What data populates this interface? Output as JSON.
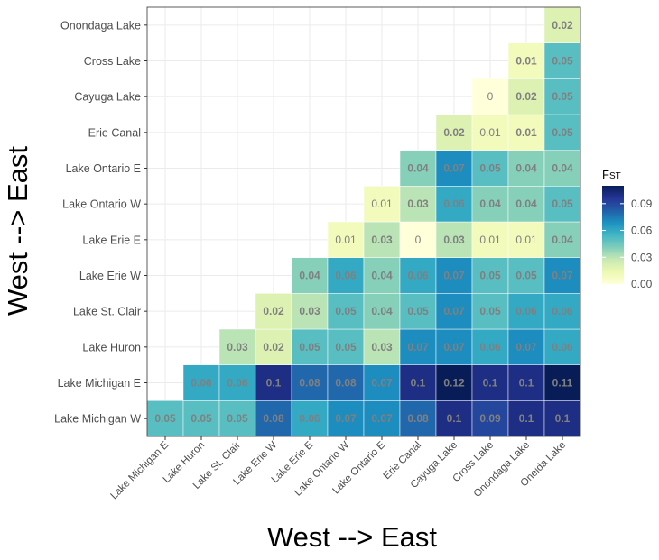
{
  "chart_data": {
    "type": "heatmap",
    "title": "",
    "xlabel": "West --> East",
    "ylabel": "West --> East",
    "x_categories": [
      "Lake Michigan E",
      "Lake Huron",
      "Lake St. Clair",
      "Lake Erie W",
      "Lake Erie E",
      "Lake Ontario W",
      "Lake Ontario E",
      "Erie Canal",
      "Cayuga Lake",
      "Cross Lake",
      "Onondaga Lake",
      "Oneida Lake"
    ],
    "y_categories": [
      "Lake Michigan W",
      "Lake Michigan E",
      "Lake Huron",
      "Lake St. Clair",
      "Lake Erie W",
      "Lake Erie E",
      "Lake Ontario W",
      "Lake Ontario E",
      "Erie Canal",
      "Cayuga Lake",
      "Cross Lake",
      "Onondaga Lake"
    ],
    "matrix": [
      [
        "0.05",
        "0.05",
        "0.05",
        "0.08",
        "0.06",
        "0.07",
        "0.07",
        "0.08",
        "0.1",
        "0.09",
        "0.1",
        "0.1"
      ],
      [
        null,
        "0.06",
        "0.06",
        "0.1",
        "0.08",
        "0.08",
        "0.07",
        "0.1",
        "0.12",
        "0.1",
        "0.1",
        "0.11"
      ],
      [
        null,
        null,
        "0.03",
        "0.02",
        "0.05",
        "0.05",
        "0.03",
        "0.07",
        "0.07",
        "0.06",
        "0.07",
        "0.06"
      ],
      [
        null,
        null,
        null,
        "0.02",
        "0.03",
        "0.05",
        "0.04",
        "0.05",
        "0.07",
        "0.05",
        "0.06",
        "0.06"
      ],
      [
        null,
        null,
        null,
        null,
        "0.04",
        "0.06",
        "0.04",
        "0.06",
        "0.07",
        "0.05",
        "0.05",
        "0.07"
      ],
      [
        null,
        null,
        null,
        null,
        null,
        "0.01",
        "0.03",
        "0",
        "0.03",
        "0.01",
        "0.01",
        "0.04"
      ],
      [
        null,
        null,
        null,
        null,
        null,
        null,
        "0.01",
        "0.03",
        "0.06",
        "0.04",
        "0.04",
        "0.05"
      ],
      [
        null,
        null,
        null,
        null,
        null,
        null,
        null,
        "0.04",
        "0.07",
        "0.05",
        "0.04",
        "0.04"
      ],
      [
        null,
        null,
        null,
        null,
        null,
        null,
        null,
        null,
        "0.02",
        "0.01",
        "0.01",
        "0.05"
      ],
      [
        null,
        null,
        null,
        null,
        null,
        null,
        null,
        null,
        null,
        "0",
        "0.02",
        "0.05"
      ],
      [
        null,
        null,
        null,
        null,
        null,
        null,
        null,
        null,
        null,
        null,
        "0.01",
        "0.05"
      ],
      [
        null,
        null,
        null,
        null,
        null,
        null,
        null,
        null,
        null,
        null,
        null,
        "0.02"
      ]
    ],
    "bold_cells": [
      [
        true,
        true,
        true,
        true,
        true,
        true,
        true,
        true,
        true,
        true,
        true,
        true
      ],
      [
        false,
        true,
        true,
        true,
        true,
        true,
        true,
        true,
        true,
        true,
        true,
        true
      ],
      [
        false,
        false,
        true,
        true,
        true,
        true,
        true,
        true,
        true,
        true,
        true,
        true
      ],
      [
        false,
        false,
        false,
        true,
        true,
        true,
        true,
        true,
        true,
        true,
        true,
        true
      ],
      [
        false,
        false,
        false,
        false,
        true,
        true,
        true,
        true,
        true,
        true,
        true,
        true
      ],
      [
        false,
        false,
        false,
        false,
        false,
        false,
        true,
        false,
        true,
        false,
        false,
        true
      ],
      [
        false,
        false,
        false,
        false,
        false,
        false,
        false,
        true,
        true,
        true,
        true,
        true
      ],
      [
        false,
        false,
        false,
        false,
        false,
        false,
        false,
        true,
        true,
        true,
        true,
        true
      ],
      [
        false,
        false,
        false,
        false,
        false,
        false,
        false,
        false,
        true,
        false,
        true,
        true
      ],
      [
        false,
        false,
        false,
        false,
        false,
        false,
        false,
        false,
        false,
        false,
        true,
        true
      ],
      [
        false,
        false,
        false,
        false,
        false,
        false,
        false,
        false,
        false,
        false,
        true,
        true
      ],
      [
        false,
        false,
        false,
        false,
        false,
        false,
        false,
        false,
        false,
        false,
        false,
        true
      ]
    ],
    "legend": {
      "title_main": "F",
      "title_sub": "ST",
      "position": "right",
      "range": [
        0,
        0.11
      ],
      "ticks": [
        {
          "value": 0.09,
          "label": "0.09"
        },
        {
          "value": 0.06,
          "label": "0.06"
        },
        {
          "value": 0.03,
          "label": "0.03"
        },
        {
          "value": 0.0,
          "label": "0.00"
        }
      ]
    },
    "colors": [
      "#ffffd9",
      "#edf8b1",
      "#c7e9b4",
      "#7fcdbb",
      "#41b6c4",
      "#1d91c0",
      "#225ea8",
      "#253494",
      "#081d58"
    ],
    "label_color": "#808080",
    "grid": true,
    "panel_border_color": "#333333",
    "grid_color": "#ebebeb"
  }
}
